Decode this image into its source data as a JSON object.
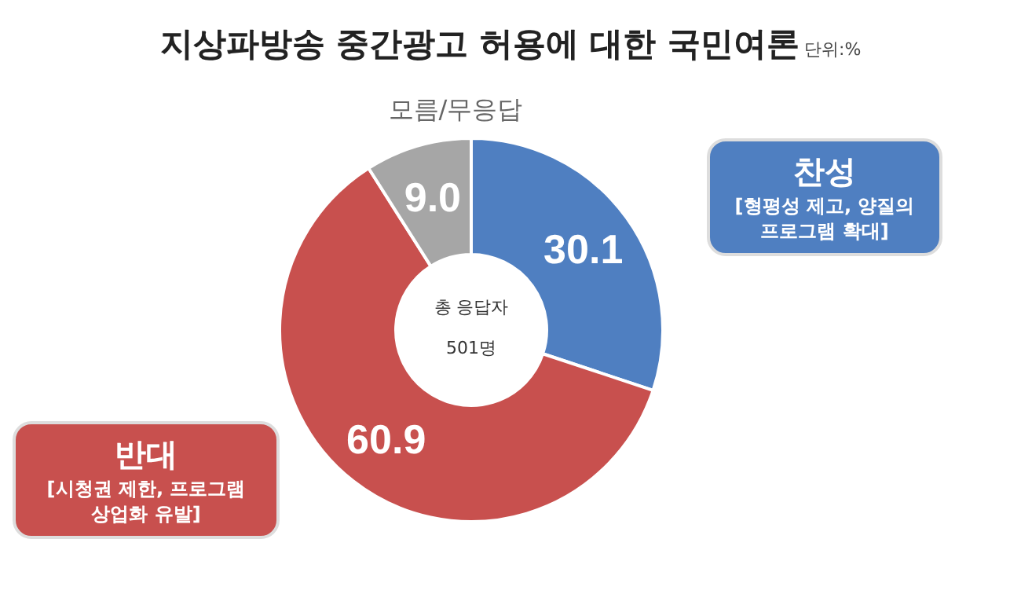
{
  "chart_data": {
    "type": "donut",
    "title": "지상파방송 중간광고 허용에 대한 국민여론",
    "subtitle": "단위:%",
    "categories": [
      "찬성",
      "반대",
      "모름/무응답"
    ],
    "values": [
      30.1,
      60.9,
      9.0
    ],
    "colors": [
      "#4f7fc1",
      "#c8504e",
      "#a6a6a6"
    ],
    "value_labels": [
      "30.1",
      "60.9",
      "9.0"
    ],
    "legend": false,
    "annotations": [
      "[형평성 제고, 양질의 프로그램 확대]",
      "[시청권 제한, 프로그램 상업화 유발]",
      "총 응답자 501명"
    ]
  }
}
